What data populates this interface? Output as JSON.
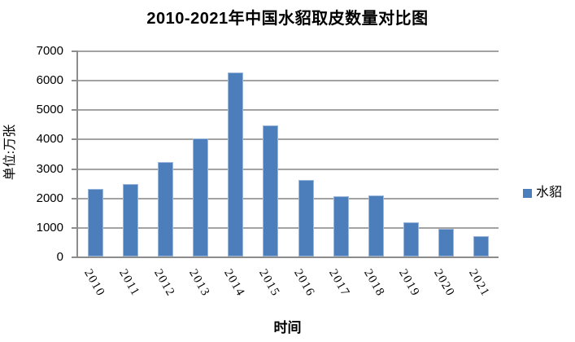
{
  "chart_data": {
    "type": "bar",
    "title": "2010-2021年中国水貂取皮数量对比图",
    "xlabel": "时间",
    "ylabel": "单位:万张",
    "categories": [
      "2010",
      "2011",
      "2012",
      "2013",
      "2014",
      "2015",
      "2016",
      "2017",
      "2018",
      "2019",
      "2020",
      "2021"
    ],
    "series": [
      {
        "name": "水貂",
        "values": [
          2300,
          2450,
          3200,
          4000,
          6250,
          4450,
          2600,
          2050,
          2080,
          1150,
          950,
          680
        ]
      }
    ],
    "ylim": [
      0,
      7000
    ],
    "ystep": 1000,
    "yticks": [
      0,
      1000,
      2000,
      3000,
      4000,
      5000,
      6000,
      7000
    ],
    "grid": true,
    "legend_position": "right",
    "colors": {
      "bar": "#4d7ebc",
      "gridline": "#a3a3a3",
      "axis": "#8c8c8c",
      "text": "#000000"
    }
  }
}
